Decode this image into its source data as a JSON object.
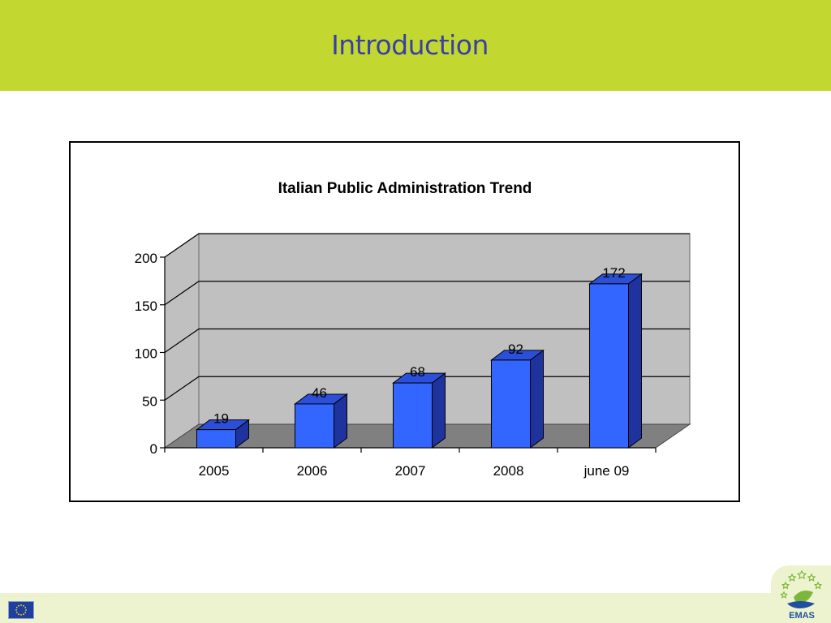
{
  "slide": {
    "title": "Introduction"
  },
  "footer": {
    "logo_text": "EMAS"
  },
  "colors": {
    "header": "#c2d831",
    "title_text": "#3a3fa6",
    "bar_front": "#3366ff",
    "bar_side": "#1f339e",
    "bar_top": "#2b4fd8",
    "plot_back": "#c0c0c0",
    "plot_floor": "#808080"
  },
  "chart_data": {
    "type": "bar",
    "title": "Italian Public Administration Trend",
    "categories": [
      "2005",
      "2006",
      "2007",
      "2008",
      "june 09"
    ],
    "values": [
      19,
      46,
      68,
      92,
      172
    ],
    "ylim": [
      0,
      200
    ],
    "yticks": [
      0,
      50,
      100,
      150,
      200
    ],
    "data_labels": [
      "19",
      "46",
      "68",
      "92",
      "172"
    ],
    "grid": true,
    "legend": "none",
    "style": "3d-column"
  }
}
